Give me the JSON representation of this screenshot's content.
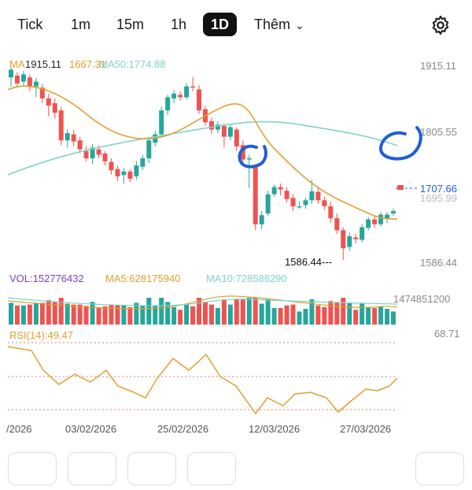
{
  "timeframes": [
    {
      "label": "Tick",
      "active": false
    },
    {
      "label": "1m",
      "active": false
    },
    {
      "label": "15m",
      "active": false
    },
    {
      "label": "1h",
      "active": false
    },
    {
      "label": "1D",
      "active": true
    }
  ],
  "more_label": "Thêm",
  "icons": {
    "settings": "gear-icon",
    "more": "chevron-down-icon"
  },
  "colors": {
    "up": "#26a69a",
    "down": "#ef5350",
    "ma_short": "#e0a030",
    "ma50": "#7fd3c9",
    "vol": "#7b3fbf",
    "annotation": "#1f5fd6"
  },
  "main_chart": {
    "ma_legend_label": "MA",
    "ma_legend_value": "1915.11",
    "ma_short_value": "1667.31",
    "ma50_label": "MA50:1774.88",
    "price_axis": [
      "1915.11",
      "1805.55",
      "1695.99",
      "1586.44"
    ],
    "last_price": "1707.66",
    "high_label": "1915.11",
    "low_label": "1586.44---"
  },
  "volume_panel": {
    "vol_label": "VOL:152776432",
    "ma5_label": "MA5:628175940",
    "ma10_label": "MA10:728588290",
    "axis_value": "1474851200"
  },
  "rsi_panel": {
    "label": "RSI(14):49.47",
    "axis_value": "68.71"
  },
  "date_axis": [
    "/2026",
    "03/02/2026",
    "25/02/2026",
    "12/03/2026",
    "27/03/2026"
  ],
  "chart_data": {
    "type": "candlestick",
    "y_axis_ticks": [
      1915.11,
      1805.55,
      1695.99,
      1586.44
    ],
    "last_price": 1707.66,
    "indicators": {
      "MA50": 1774.88,
      "VOL": 152776432,
      "MA5": 628175940,
      "MA10": 728588290,
      "RSI14": 49.47
    }
  },
  "candles": [
    [
      1895,
      1908,
      1880,
      1912
    ],
    [
      1898,
      1885,
      1878,
      1904
    ],
    [
      1888,
      1900,
      1880,
      1906
    ],
    [
      1895,
      1880,
      1872,
      1900
    ],
    [
      1880,
      1888,
      1862,
      1894
    ],
    [
      1878,
      1860,
      1852,
      1884
    ],
    [
      1860,
      1848,
      1830,
      1868
    ],
    [
      1852,
      1836,
      1826,
      1860
    ],
    [
      1840,
      1790,
      1782,
      1846
    ],
    [
      1790,
      1802,
      1778,
      1808
    ],
    [
      1800,
      1788,
      1780,
      1808
    ],
    [
      1790,
      1775,
      1768,
      1796
    ],
    [
      1772,
      1760,
      1755,
      1780
    ],
    [
      1760,
      1778,
      1750,
      1784
    ],
    [
      1775,
      1766,
      1760,
      1782
    ],
    [
      1768,
      1755,
      1748,
      1772
    ],
    [
      1754,
      1740,
      1733,
      1760
    ],
    [
      1742,
      1730,
      1722,
      1748
    ],
    [
      1732,
      1738,
      1718,
      1744
    ],
    [
      1738,
      1726,
      1720,
      1742
    ],
    [
      1730,
      1748,
      1724,
      1756
    ],
    [
      1746,
      1760,
      1740,
      1766
    ],
    [
      1760,
      1790,
      1752,
      1796
    ],
    [
      1786,
      1800,
      1780,
      1806
    ],
    [
      1800,
      1840,
      1795,
      1846
    ],
    [
      1840,
      1862,
      1832,
      1866
    ],
    [
      1860,
      1868,
      1852,
      1874
    ],
    [
      1866,
      1862,
      1856,
      1872
    ],
    [
      1862,
      1880,
      1858,
      1886
    ],
    [
      1880,
      1878,
      1872,
      1896
    ],
    [
      1875,
      1840,
      1834,
      1882
    ],
    [
      1842,
      1820,
      1814,
      1848
    ],
    [
      1822,
      1808,
      1800,
      1828
    ],
    [
      1808,
      1816,
      1802,
      1822
    ],
    [
      1814,
      1796,
      1778,
      1818
    ],
    [
      1796,
      1812,
      1790,
      1818
    ],
    [
      1808,
      1780,
      1772,
      1812
    ],
    [
      1782,
      1758,
      1750,
      1790
    ],
    [
      1758,
      1760,
      1710,
      1765
    ],
    [
      1745,
      1650,
      1640,
      1750
    ],
    [
      1650,
      1665,
      1642,
      1672
    ],
    [
      1668,
      1700,
      1664,
      1706
    ],
    [
      1700,
      1712,
      1696,
      1716
    ],
    [
      1712,
      1708,
      1698,
      1718
    ],
    [
      1706,
      1692,
      1686,
      1712
    ],
    [
      1694,
      1680,
      1672,
      1700
    ],
    [
      1680,
      1680,
      1676,
      1688
    ],
    [
      1682,
      1690,
      1676,
      1694
    ],
    [
      1690,
      1705,
      1684,
      1724
    ],
    [
      1704,
      1690,
      1684,
      1710
    ],
    [
      1690,
      1680,
      1674,
      1696
    ],
    [
      1680,
      1660,
      1652,
      1688
    ],
    [
      1660,
      1640,
      1634,
      1668
    ],
    [
      1640,
      1610,
      1590,
      1645
    ],
    [
      1612,
      1630,
      1605,
      1636
    ],
    [
      1628,
      1625,
      1618,
      1634
    ],
    [
      1624,
      1645,
      1620,
      1650
    ],
    [
      1644,
      1658,
      1640,
      1662
    ],
    [
      1658,
      1650,
      1644,
      1664
    ],
    [
      1650,
      1666,
      1646,
      1670
    ],
    [
      1660,
      1666,
      1652,
      1670
    ],
    [
      1668,
      1672,
      1664,
      1676
    ]
  ]
}
